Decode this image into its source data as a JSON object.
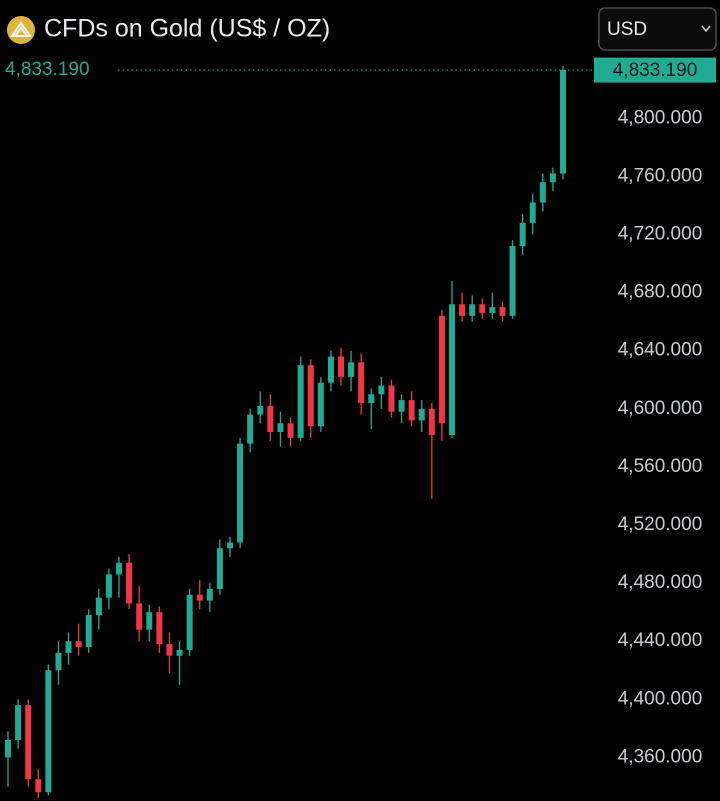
{
  "chart_data": {
    "type": "candlestick",
    "title": "CFDs on Gold (US$ / OZ)",
    "currency": "USD",
    "up_color": "#22ab94",
    "down_color": "#f23645",
    "last_price": {
      "value": 4833.19,
      "label": "4,833.190"
    },
    "ylim": [
      4330,
      4847
    ],
    "yticks": [
      {
        "value": 4360,
        "label": "4,360.000"
      },
      {
        "value": 4400,
        "label": "4,400.000"
      },
      {
        "value": 4440,
        "label": "4,440.000"
      },
      {
        "value": 4480,
        "label": "4,480.000"
      },
      {
        "value": 4520,
        "label": "4,520.000"
      },
      {
        "value": 4560,
        "label": "4,560.000"
      },
      {
        "value": 4600,
        "label": "4,600.000"
      },
      {
        "value": 4640,
        "label": "4,640.000"
      },
      {
        "value": 4680,
        "label": "4,680.000"
      },
      {
        "value": 4720,
        "label": "4,720.000"
      },
      {
        "value": 4760,
        "label": "4,760.000"
      },
      {
        "value": 4800,
        "label": "4,800.000"
      }
    ],
    "grid": false,
    "open": [
      4360,
      4372,
      4396,
      4345,
      4336,
      4420,
      4432,
      4440,
      4436,
      4458,
      4470,
      4486,
      4494,
      4466,
      4448,
      4460,
      4438,
      4430,
      4434,
      4472,
      4468,
      4476,
      4504,
      4508,
      4576,
      4596,
      4602,
      4584,
      4590,
      4580,
      4630,
      4588,
      4618,
      4636,
      4622,
      4632,
      4604,
      4610,
      4616,
      4598,
      4606,
      4592,
      4600,
      4664,
      4582,
      4672,
      4664,
      4672,
      4666,
      4670,
      4664,
      4712,
      4728,
      4742,
      4756,
      4762
    ],
    "high": [
      4378,
      4400,
      4400,
      4352,
      4424,
      4440,
      4446,
      4452,
      4462,
      4476,
      4490,
      4498,
      4500,
      4478,
      4465,
      4464,
      4446,
      4440,
      4476,
      4482,
      4480,
      4510,
      4512,
      4580,
      4600,
      4612,
      4610,
      4598,
      4594,
      4636,
      4634,
      4622,
      4640,
      4642,
      4640,
      4638,
      4614,
      4622,
      4620,
      4610,
      4612,
      4606,
      4604,
      4668,
      4688,
      4680,
      4678,
      4676,
      4680,
      4674,
      4716,
      4734,
      4748,
      4762,
      4766,
      4836
    ],
    "low": [
      4340,
      4366,
      4340,
      4332,
      4334,
      4410,
      4424,
      4430,
      4432,
      4448,
      4462,
      4470,
      4462,
      4440,
      4440,
      4432,
      4418,
      4410,
      4430,
      4462,
      4460,
      4472,
      4498,
      4504,
      4570,
      4590,
      4578,
      4574,
      4574,
      4578,
      4580,
      4584,
      4612,
      4616,
      4612,
      4596,
      4586,
      4600,
      4594,
      4590,
      4588,
      4584,
      4538,
      4578,
      4580,
      4660,
      4660,
      4662,
      4662,
      4660,
      4662,
      4706,
      4720,
      4736,
      4750,
      4758
    ],
    "close": [
      4372,
      4396,
      4345,
      4336,
      4420,
      4432,
      4440,
      4436,
      4458,
      4470,
      4486,
      4494,
      4466,
      4448,
      4460,
      4438,
      4430,
      4434,
      4472,
      4468,
      4476,
      4504,
      4508,
      4576,
      4596,
      4602,
      4584,
      4590,
      4580,
      4630,
      4588,
      4618,
      4636,
      4622,
      4632,
      4604,
      4610,
      4616,
      4598,
      4606,
      4592,
      4600,
      4582,
      4590,
      4672,
      4664,
      4672,
      4666,
      4670,
      4664,
      4712,
      4728,
      4742,
      4756,
      4762,
      4833.19
    ]
  }
}
